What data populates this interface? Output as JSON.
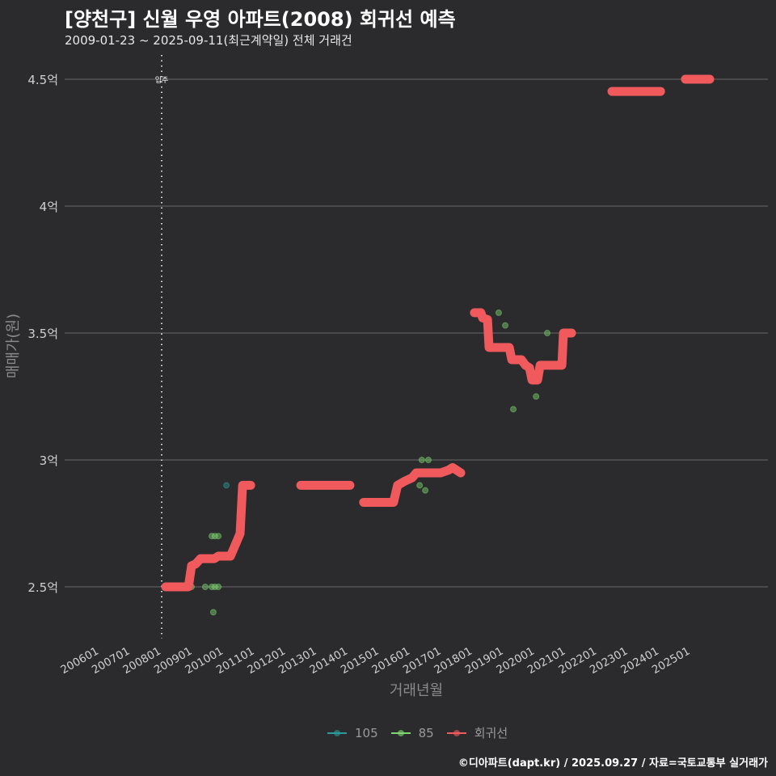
{
  "header": {
    "title": "[양천구] 신월 우영 아파트(2008) 회귀선 예측",
    "subtitle": "2009-01-23 ~ 2025-09-11(최근계약일) 전체 거래건"
  },
  "footer": "©디아파트(dapt.kr) / 2025.09.27 / 자료=국토교통부 실거래가",
  "chart_data": {
    "type": "scatter",
    "title": "[양천구] 신월 우영 아파트(2008) 회귀선 예측",
    "xlabel": "거래년월",
    "ylabel": "매매가(원)",
    "ylim": [
      2.3,
      4.6
    ],
    "xlim": [
      2005,
      2027.5
    ],
    "grid": true,
    "legend_position": "bottom",
    "y_ticks": [
      {
        "value": 2.5,
        "label": "2.5억"
      },
      {
        "value": 3.0,
        "label": "3억"
      },
      {
        "value": 3.5,
        "label": "3.5억"
      },
      {
        "value": 4.0,
        "label": "4억"
      },
      {
        "value": 4.5,
        "label": "4.5억"
      }
    ],
    "x_ticks": [
      {
        "value": 2006,
        "label": "200601"
      },
      {
        "value": 2007,
        "label": "200701"
      },
      {
        "value": 2008,
        "label": "200801"
      },
      {
        "value": 2009,
        "label": "200901"
      },
      {
        "value": 2010,
        "label": "201001"
      },
      {
        "value": 2011,
        "label": "201101"
      },
      {
        "value": 2012,
        "label": "201201"
      },
      {
        "value": 2013,
        "label": "201301"
      },
      {
        "value": 2014,
        "label": "201401"
      },
      {
        "value": 2015,
        "label": "201501"
      },
      {
        "value": 2016,
        "label": "201601"
      },
      {
        "value": 2017,
        "label": "201701"
      },
      {
        "value": 2018,
        "label": "201801"
      },
      {
        "value": 2019,
        "label": "201901"
      },
      {
        "value": 2020,
        "label": "202001"
      },
      {
        "value": 2021,
        "label": "202101"
      },
      {
        "value": 2022,
        "label": "202201"
      },
      {
        "value": 2023,
        "label": "202301"
      },
      {
        "value": 2024,
        "label": "202401"
      },
      {
        "value": 2025,
        "label": "202501"
      }
    ],
    "annotation": {
      "x": 2008.0,
      "label": "입주"
    },
    "legend": [
      {
        "name": "105",
        "color": "#2a9d9a"
      },
      {
        "name": "85",
        "color": "#7ed66f"
      },
      {
        "name": "회귀선",
        "color": "#f05a5c"
      }
    ],
    "series": [
      {
        "name": "105",
        "color": "#2a9d9a",
        "points": [
          [
            2010.08,
            2.9
          ]
        ]
      },
      {
        "name": "85",
        "color": "#7ed66f",
        "points": [
          [
            2008.96,
            2.5
          ],
          [
            2009.4,
            2.5
          ],
          [
            2009.61,
            2.5
          ],
          [
            2009.71,
            2.5
          ],
          [
            2009.82,
            2.5
          ],
          [
            2009.61,
            2.7
          ],
          [
            2009.71,
            2.7
          ],
          [
            2009.82,
            2.7
          ],
          [
            2009.66,
            2.4
          ],
          [
            2016.29,
            2.9
          ],
          [
            2016.36,
            3.0
          ],
          [
            2016.47,
            2.88
          ],
          [
            2016.57,
            3.0
          ],
          [
            2018.83,
            3.58
          ],
          [
            2019.04,
            3.53
          ],
          [
            2019.3,
            3.2
          ],
          [
            2020.03,
            3.25
          ],
          [
            2020.39,
            3.5
          ]
        ]
      },
      {
        "name": "회귀선",
        "color": "#f05a5c",
        "segments": [
          [
            [
              2008.13,
              2.5
            ],
            [
              2008.86,
              2.5
            ],
            [
              2008.96,
              2.583
            ],
            [
              2009.09,
              2.59
            ],
            [
              2009.25,
              2.611
            ],
            [
              2009.69,
              2.611
            ],
            [
              2009.82,
              2.621
            ],
            [
              2010.21,
              2.621
            ],
            [
              2010.39,
              2.672
            ],
            [
              2010.52,
              2.71
            ],
            [
              2010.6,
              2.9
            ],
            [
              2010.86,
              2.9
            ]
          ],
          [
            [
              2012.47,
              2.9
            ],
            [
              2014.05,
              2.9
            ]
          ],
          [
            [
              2014.49,
              2.833
            ],
            [
              2015.45,
              2.833
            ],
            [
              2015.58,
              2.9
            ],
            [
              2015.79,
              2.915
            ],
            [
              2016.05,
              2.93
            ],
            [
              2016.18,
              2.949
            ],
            [
              2016.96,
              2.949
            ],
            [
              2017.22,
              2.96
            ],
            [
              2017.35,
              2.97
            ],
            [
              2017.61,
              2.949
            ]
          ],
          [
            [
              2018.05,
              3.58
            ],
            [
              2018.26,
              3.58
            ],
            [
              2018.31,
              3.56
            ],
            [
              2018.47,
              3.553
            ],
            [
              2018.52,
              3.443
            ],
            [
              2019.17,
              3.443
            ],
            [
              2019.25,
              3.395
            ],
            [
              2019.56,
              3.395
            ],
            [
              2019.69,
              3.373
            ],
            [
              2019.82,
              3.363
            ],
            [
              2019.9,
              3.315
            ],
            [
              2020.08,
              3.315
            ],
            [
              2020.16,
              3.373
            ],
            [
              2020.86,
              3.373
            ],
            [
              2020.91,
              3.5
            ],
            [
              2021.17,
              3.5
            ]
          ],
          [
            [
              2022.47,
              4.452
            ],
            [
              2024.03,
              4.452
            ]
          ],
          [
            [
              2024.83,
              4.5
            ],
            [
              2025.61,
              4.5
            ]
          ]
        ]
      }
    ]
  }
}
